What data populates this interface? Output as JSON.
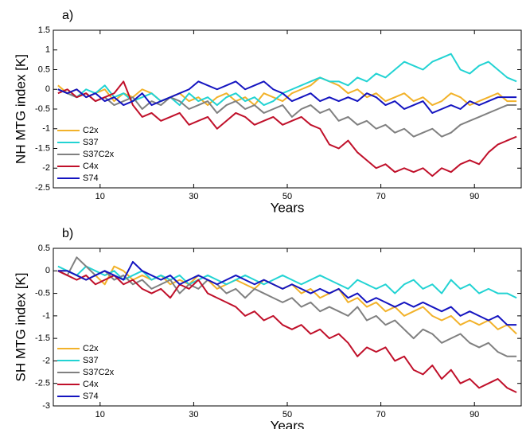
{
  "chart_data": [
    {
      "type": "line",
      "title": "a)",
      "xlabel": "Years",
      "ylabel": "NH MTG index [K]",
      "xlim": [
        0,
        100
      ],
      "ylim": [
        -2.5,
        1.5
      ],
      "xticks": [
        10,
        30,
        50,
        70,
        90
      ],
      "yticks": [
        1.5,
        1,
        0.5,
        0,
        -0.5,
        -1,
        -1.5,
        -2,
        -2.5
      ],
      "legend": "lower left",
      "x": [
        1,
        3,
        5,
        7,
        9,
        11,
        13,
        15,
        17,
        19,
        21,
        23,
        25,
        27,
        29,
        31,
        33,
        35,
        37,
        39,
        41,
        43,
        45,
        47,
        49,
        51,
        53,
        55,
        57,
        59,
        61,
        63,
        65,
        67,
        69,
        71,
        73,
        75,
        77,
        79,
        81,
        83,
        85,
        87,
        89,
        91,
        93,
        95,
        97,
        99
      ],
      "series": [
        {
          "name": "C2x",
          "color": "#f2b22a",
          "values": [
            0.1,
            -0.1,
            0,
            -0.2,
            -0.1,
            0,
            -0.3,
            -0.1,
            -0.2,
            0,
            -0.1,
            -0.3,
            -0.2,
            -0.1,
            -0.3,
            -0.2,
            -0.4,
            -0.2,
            -0.1,
            -0.3,
            -0.2,
            -0.4,
            -0.1,
            -0.2,
            -0.3,
            -0.1,
            0,
            0.1,
            0.3,
            0.2,
            0.1,
            -0.1,
            0,
            -0.2,
            -0.1,
            -0.3,
            -0.2,
            -0.1,
            -0.3,
            -0.2,
            -0.4,
            -0.3,
            -0.1,
            -0.2,
            -0.4,
            -0.3,
            -0.2,
            -0.1,
            -0.3,
            -0.3
          ]
        },
        {
          "name": "S37",
          "color": "#22d3d3",
          "values": [
            0,
            -0.1,
            -0.2,
            0,
            -0.1,
            0.1,
            -0.2,
            -0.1,
            -0.3,
            -0.2,
            -0.1,
            -0.3,
            -0.2,
            -0.4,
            -0.1,
            -0.3,
            -0.2,
            -0.4,
            -0.2,
            -0.1,
            -0.3,
            -0.2,
            -0.4,
            -0.3,
            -0.1,
            0,
            0.1,
            0.2,
            0.3,
            0.2,
            0.2,
            0.1,
            0.3,
            0.2,
            0.4,
            0.3,
            0.5,
            0.7,
            0.6,
            0.5,
            0.7,
            0.8,
            0.9,
            0.5,
            0.4,
            0.6,
            0.7,
            0.5,
            0.3,
            0.2
          ]
        },
        {
          "name": "S37C2x",
          "color": "#808080",
          "values": [
            0,
            -0.1,
            -0.2,
            -0.1,
            -0.3,
            -0.2,
            -0.4,
            -0.3,
            -0.2,
            -0.5,
            -0.3,
            -0.4,
            -0.2,
            -0.3,
            -0.5,
            -0.4,
            -0.3,
            -0.6,
            -0.4,
            -0.3,
            -0.5,
            -0.4,
            -0.6,
            -0.5,
            -0.4,
            -0.7,
            -0.5,
            -0.4,
            -0.6,
            -0.5,
            -0.8,
            -0.7,
            -0.9,
            -0.8,
            -1.0,
            -0.9,
            -1.1,
            -1.0,
            -1.2,
            -1.1,
            -1.0,
            -1.2,
            -1.1,
            -0.9,
            -0.8,
            -0.7,
            -0.6,
            -0.5,
            -0.4,
            -0.4
          ]
        },
        {
          "name": "C4x",
          "color": "#c0102a",
          "values": [
            -0.1,
            0,
            -0.2,
            -0.1,
            -0.3,
            -0.2,
            -0.1,
            0.2,
            -0.4,
            -0.7,
            -0.6,
            -0.8,
            -0.7,
            -0.6,
            -0.9,
            -0.8,
            -0.7,
            -1.0,
            -0.8,
            -0.6,
            -0.7,
            -0.9,
            -0.8,
            -0.7,
            -0.9,
            -0.8,
            -0.7,
            -0.9,
            -1.0,
            -1.4,
            -1.5,
            -1.3,
            -1.6,
            -1.8,
            -2.0,
            -1.9,
            -2.1,
            -2.0,
            -2.1,
            -2.0,
            -2.2,
            -2.0,
            -2.1,
            -1.9,
            -1.8,
            -1.9,
            -1.6,
            -1.4,
            -1.3,
            -1.2
          ]
        },
        {
          "name": "S74",
          "color": "#1414c0",
          "values": [
            0,
            -0.1,
            0,
            -0.2,
            -0.1,
            -0.3,
            -0.2,
            -0.4,
            -0.3,
            -0.1,
            -0.4,
            -0.3,
            -0.2,
            -0.1,
            0,
            0.2,
            0.1,
            0,
            0.1,
            0.2,
            0,
            0.1,
            0.2,
            0,
            -0.1,
            -0.3,
            -0.2,
            -0.1,
            -0.3,
            -0.2,
            -0.3,
            -0.2,
            -0.3,
            -0.1,
            -0.2,
            -0.4,
            -0.3,
            -0.5,
            -0.4,
            -0.3,
            -0.6,
            -0.5,
            -0.4,
            -0.5,
            -0.3,
            -0.4,
            -0.3,
            -0.2,
            -0.2,
            -0.2
          ]
        }
      ]
    },
    {
      "type": "line",
      "title": "b)",
      "xlabel": "Years",
      "ylabel": "SH MTG index [K]",
      "xlim": [
        0,
        100
      ],
      "ylim": [
        -3,
        0.5
      ],
      "xticks": [
        10,
        30,
        50,
        70,
        90
      ],
      "yticks": [
        0.5,
        0,
        -0.5,
        -1,
        -1.5,
        -2,
        -2.5,
        -3
      ],
      "legend": "lower left",
      "x": [
        1,
        3,
        5,
        7,
        9,
        11,
        13,
        15,
        17,
        19,
        21,
        23,
        25,
        27,
        29,
        31,
        33,
        35,
        37,
        39,
        41,
        43,
        45,
        47,
        49,
        51,
        53,
        55,
        57,
        59,
        61,
        63,
        65,
        67,
        69,
        71,
        73,
        75,
        77,
        79,
        81,
        83,
        85,
        87,
        89,
        91,
        93,
        95,
        97,
        99
      ],
      "series": [
        {
          "name": "C2x",
          "color": "#f2b22a",
          "values": [
            0,
            0,
            -0.1,
            -0.2,
            -0.1,
            -0.3,
            0.1,
            0,
            -0.2,
            -0.1,
            -0.2,
            -0.1,
            -0.3,
            -0.2,
            -0.3,
            -0.1,
            -0.2,
            -0.4,
            -0.3,
            -0.2,
            -0.3,
            -0.4,
            -0.2,
            -0.3,
            -0.4,
            -0.3,
            -0.5,
            -0.4,
            -0.6,
            -0.5,
            -0.4,
            -0.7,
            -0.6,
            -0.8,
            -0.7,
            -0.9,
            -0.8,
            -1.0,
            -0.9,
            -0.8,
            -1.0,
            -1.1,
            -1.0,
            -1.2,
            -1.1,
            -1.2,
            -1.1,
            -1.3,
            -1.2,
            -1.4
          ]
        },
        {
          "name": "S37",
          "color": "#22d3d3",
          "values": [
            0.1,
            0,
            -0.1,
            0.1,
            0,
            -0.1,
            0,
            -0.2,
            -0.1,
            0,
            -0.2,
            -0.1,
            -0.2,
            -0.1,
            -0.3,
            -0.2,
            -0.1,
            -0.2,
            -0.3,
            -0.2,
            -0.1,
            -0.2,
            -0.3,
            -0.2,
            -0.1,
            -0.2,
            -0.3,
            -0.2,
            -0.1,
            -0.2,
            -0.3,
            -0.4,
            -0.2,
            -0.3,
            -0.4,
            -0.3,
            -0.5,
            -0.3,
            -0.2,
            -0.4,
            -0.3,
            -0.5,
            -0.2,
            -0.4,
            -0.3,
            -0.5,
            -0.4,
            -0.5,
            -0.5,
            -0.6
          ]
        },
        {
          "name": "S37C2x",
          "color": "#808080",
          "values": [
            0,
            -0.1,
            0.3,
            0.1,
            -0.1,
            0,
            -0.2,
            -0.1,
            -0.3,
            -0.2,
            -0.4,
            -0.3,
            -0.2,
            -0.5,
            -0.3,
            -0.4,
            -0.2,
            -0.3,
            -0.5,
            -0.4,
            -0.6,
            -0.4,
            -0.5,
            -0.6,
            -0.7,
            -0.6,
            -0.8,
            -0.7,
            -0.9,
            -0.8,
            -0.9,
            -1.0,
            -0.8,
            -1.1,
            -1.0,
            -1.2,
            -1.1,
            -1.3,
            -1.5,
            -1.3,
            -1.4,
            -1.6,
            -1.5,
            -1.4,
            -1.6,
            -1.7,
            -1.6,
            -1.8,
            -1.9,
            -1.9
          ]
        },
        {
          "name": "C4x",
          "color": "#c0102a",
          "values": [
            0,
            -0.1,
            -0.2,
            -0.1,
            -0.3,
            -0.2,
            -0.1,
            -0.3,
            -0.2,
            -0.4,
            -0.5,
            -0.4,
            -0.6,
            -0.3,
            -0.4,
            -0.2,
            -0.5,
            -0.6,
            -0.7,
            -0.8,
            -1.0,
            -0.9,
            -1.1,
            -1.0,
            -1.2,
            -1.3,
            -1.2,
            -1.4,
            -1.3,
            -1.5,
            -1.4,
            -1.6,
            -1.9,
            -1.7,
            -1.8,
            -1.7,
            -2.0,
            -1.9,
            -2.2,
            -2.3,
            -2.1,
            -2.4,
            -2.2,
            -2.5,
            -2.4,
            -2.6,
            -2.5,
            -2.4,
            -2.6,
            -2.7
          ]
        },
        {
          "name": "S74",
          "color": "#1414c0",
          "values": [
            0,
            0,
            -0.1,
            -0.2,
            -0.1,
            0,
            -0.1,
            -0.2,
            0.2,
            0,
            -0.1,
            -0.2,
            -0.1,
            -0.3,
            -0.2,
            -0.1,
            -0.2,
            -0.3,
            -0.2,
            -0.1,
            -0.2,
            -0.3,
            -0.2,
            -0.3,
            -0.4,
            -0.3,
            -0.4,
            -0.5,
            -0.4,
            -0.5,
            -0.4,
            -0.6,
            -0.5,
            -0.7,
            -0.6,
            -0.7,
            -0.8,
            -0.7,
            -0.8,
            -0.7,
            -0.8,
            -0.9,
            -0.8,
            -1.0,
            -0.9,
            -1.0,
            -1.1,
            -1.0,
            -1.2,
            -1.2
          ]
        }
      ]
    }
  ]
}
